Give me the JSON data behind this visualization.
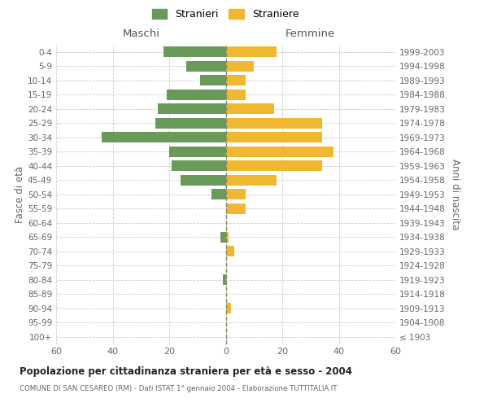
{
  "age_groups": [
    "0-4",
    "5-9",
    "10-14",
    "15-19",
    "20-24",
    "25-29",
    "30-34",
    "35-39",
    "40-44",
    "45-49",
    "50-54",
    "55-59",
    "60-64",
    "65-69",
    "70-74",
    "75-79",
    "80-84",
    "85-89",
    "90-94",
    "95-99",
    "100+"
  ],
  "birth_years": [
    "1999-2003",
    "1994-1998",
    "1989-1993",
    "1984-1988",
    "1979-1983",
    "1974-1978",
    "1969-1973",
    "1964-1968",
    "1959-1963",
    "1954-1958",
    "1949-1953",
    "1944-1948",
    "1939-1943",
    "1934-1938",
    "1929-1933",
    "1924-1928",
    "1919-1923",
    "1914-1918",
    "1909-1913",
    "1904-1908",
    "≤ 1903"
  ],
  "maschi": [
    22,
    14,
    9,
    21,
    24,
    25,
    44,
    20,
    19,
    16,
    5,
    0,
    0,
    2,
    0,
    0,
    1,
    0,
    0,
    0,
    0
  ],
  "femmine": [
    18,
    10,
    7,
    7,
    17,
    34,
    34,
    38,
    34,
    18,
    7,
    7,
    0,
    1,
    3,
    0,
    0,
    0,
    2,
    0,
    0
  ],
  "maschi_color": "#6a9a5a",
  "femmine_color": "#f0b830",
  "bg_color": "#ffffff",
  "grid_color": "#cccccc",
  "title": "Popolazione per cittadinanza straniera per età e sesso - 2004",
  "subtitle": "COMUNE DI SAN CESAREO (RM) - Dati ISTAT 1° gennaio 2004 - Elaborazione TUTTITALIA.IT",
  "ylabel_left": "Fasce di età",
  "ylabel_right": "Anni di nascita",
  "label_maschi": "Maschi",
  "label_femmine": "Femmine",
  "legend_stranieri": "Stranieri",
  "legend_straniere": "Straniere",
  "xlim": 60
}
